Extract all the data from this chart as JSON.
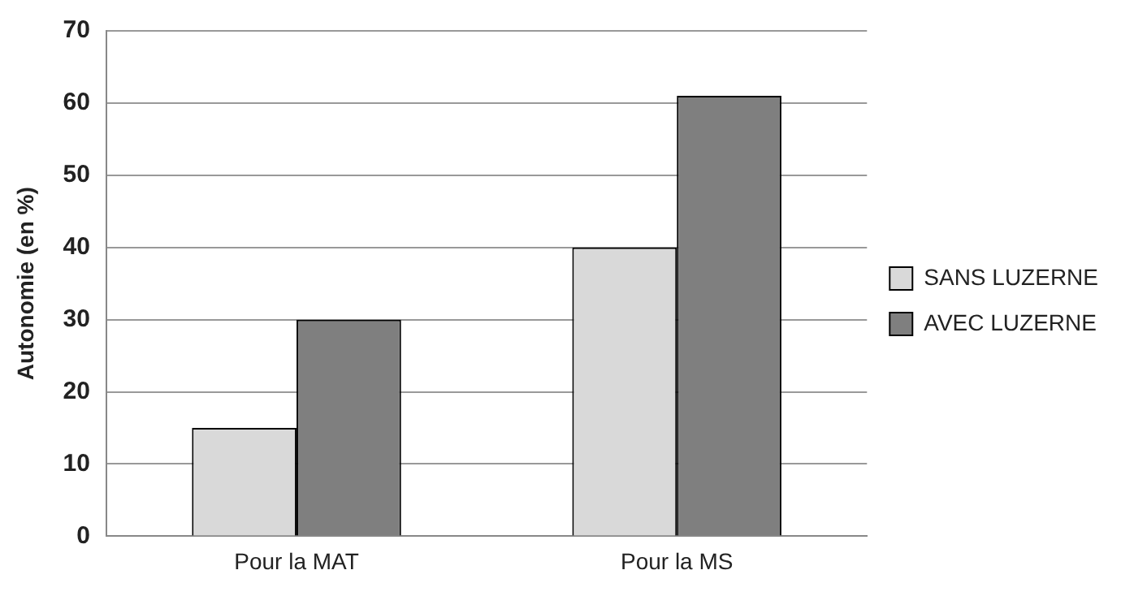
{
  "chart_data": {
    "type": "bar",
    "ylabel": "Autonomie (en %)",
    "categories": [
      "Pour la MAT",
      "Pour la MS"
    ],
    "series": [
      {
        "name": "SANS LUZERNE",
        "color": "#d9d9d9",
        "values": [
          15,
          40
        ]
      },
      {
        "name": "AVEC LUZERNE",
        "color": "#7f7f7f",
        "values": [
          30,
          61
        ]
      }
    ],
    "ylim": [
      0,
      70
    ],
    "yticks": [
      0,
      10,
      20,
      30,
      40,
      50,
      60,
      70
    ],
    "grid": "y",
    "legend": "right"
  }
}
